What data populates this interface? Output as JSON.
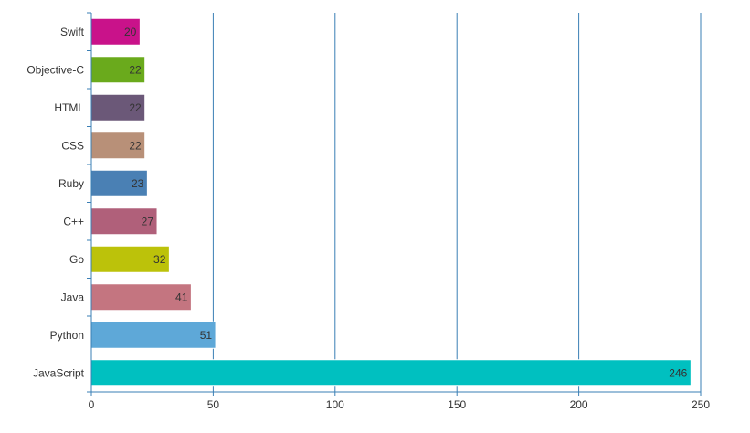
{
  "chart_data": {
    "type": "bar",
    "orientation": "horizontal",
    "title": "",
    "xlabel": "",
    "ylabel": "",
    "categories": [
      "Swift",
      "Objective-C",
      "HTML",
      "CSS",
      "Ruby",
      "C++",
      "Go",
      "Java",
      "Python",
      "JavaScript"
    ],
    "values": [
      20,
      22,
      22,
      22,
      23,
      27,
      32,
      41,
      51,
      246
    ],
    "colors": [
      "#c9128a",
      "#6aaa1c",
      "#6b5878",
      "#b89078",
      "#4a80b4",
      "#b0607a",
      "#bcc20a",
      "#c47580",
      "#5ea8d8",
      "#00c0c0"
    ],
    "xlim": [
      0,
      250
    ],
    "xticks": [
      0,
      50,
      100,
      150,
      200,
      250
    ],
    "grid": true,
    "legend": "none",
    "data_labels": true
  }
}
